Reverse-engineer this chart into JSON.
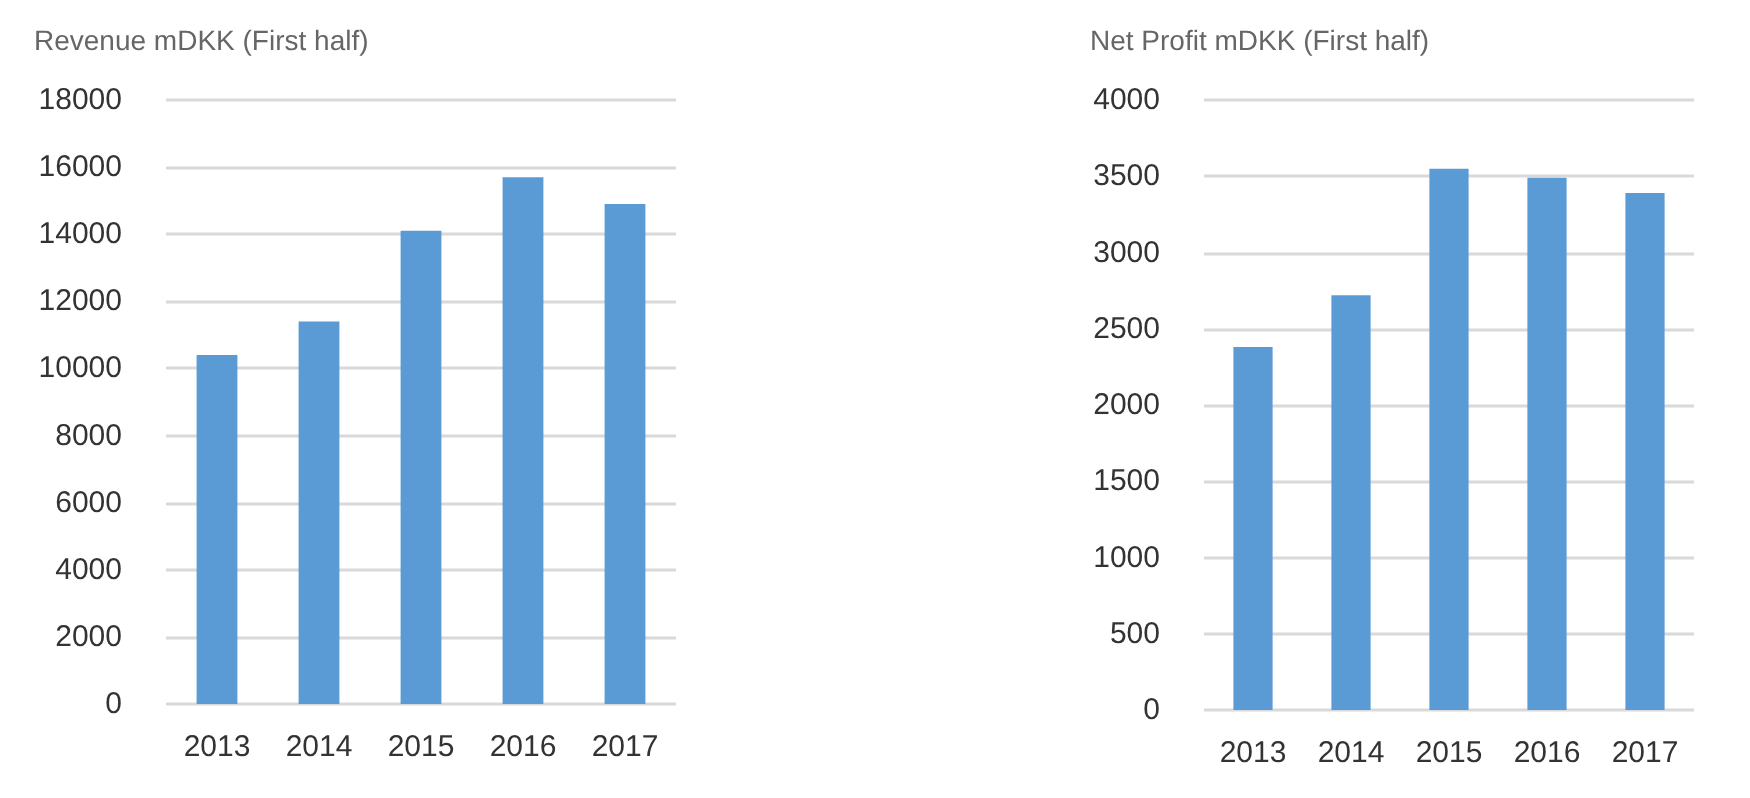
{
  "chart_data": [
    {
      "type": "bar",
      "title": "Revenue mDKK (First half)",
      "categories": [
        "2013",
        "2014",
        "2015",
        "2016",
        "2017"
      ],
      "values": [
        10400,
        11400,
        14100,
        15700,
        14900
      ],
      "color": "#5b9bd5",
      "ylim": [
        0,
        18000
      ],
      "yticks": [
        0,
        2000,
        4000,
        6000,
        8000,
        10000,
        12000,
        14000,
        16000,
        18000
      ],
      "grid": "y"
    },
    {
      "type": "bar",
      "title": "Net Profit mDKK (First half)",
      "categories": [
        "2013",
        "2014",
        "2015",
        "2016",
        "2017"
      ],
      "values": [
        2380,
        2720,
        3550,
        3490,
        3390
      ],
      "color": "#5b9bd5",
      "ylim": [
        0,
        4000
      ],
      "yticks": [
        0,
        500,
        1000,
        1500,
        2000,
        2500,
        3000,
        3500,
        4000
      ],
      "grid": "y"
    }
  ]
}
